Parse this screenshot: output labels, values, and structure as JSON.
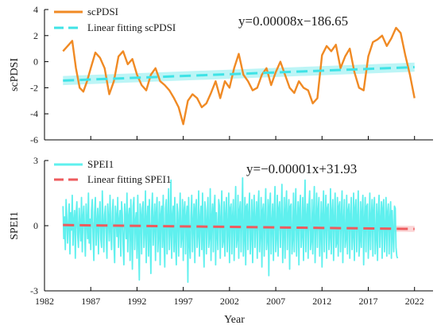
{
  "chart_data": [
    {
      "type": "line",
      "ylabel": "scPDSI",
      "xlim": [
        1982,
        2024
      ],
      "ylim": [
        -6,
        4
      ],
      "yticks": [
        "4",
        "2",
        "0",
        "-2",
        "-4",
        "-6"
      ],
      "legend": [
        {
          "label": "scPDSI",
          "style": "solid",
          "color": "#f08a24"
        },
        {
          "label": "Linear fitting scPDSI",
          "style": "dashed",
          "color": "#3fe3e6"
        }
      ],
      "legend_position": "top-left",
      "annotation": "y=0.00008x−186.65",
      "series": [
        {
          "name": "scPDSI",
          "color": "#f08a24",
          "x": [
            1984.0,
            1984.5,
            1985.0,
            1985.4,
            1985.8,
            1986.2,
            1986.6,
            1987.0,
            1987.5,
            1988.0,
            1988.5,
            1989.0,
            1989.5,
            1990.0,
            1990.5,
            1991.0,
            1991.5,
            1992.0,
            1992.5,
            1993.0,
            1993.5,
            1994.0,
            1994.5,
            1995.0,
            1995.5,
            1996.0,
            1996.5,
            1997.0,
            1997.5,
            1998.0,
            1998.5,
            1999.0,
            1999.5,
            2000.0,
            2000.5,
            2001.0,
            2001.5,
            2002.0,
            2002.5,
            2003.0,
            2003.5,
            2004.0,
            2004.5,
            2005.0,
            2005.5,
            2006.0,
            2006.5,
            2007.0,
            2007.5,
            2008.0,
            2008.5,
            2009.0,
            2009.5,
            2010.0,
            2010.5,
            2011.0,
            2011.5,
            2012.0,
            2012.5,
            2013.0,
            2013.5,
            2014.0,
            2014.5,
            2015.0,
            2015.5,
            2016.0,
            2016.5,
            2017.0,
            2017.5,
            2018.0,
            2018.5,
            2019.0,
            2019.5,
            2020.0,
            2020.5,
            2021.0,
            2021.5,
            2022.0
          ],
          "values": [
            0.8,
            1.2,
            1.6,
            -0.5,
            -2.0,
            -2.3,
            -1.5,
            -0.5,
            0.7,
            0.3,
            -0.5,
            -2.5,
            -1.5,
            0.4,
            0.8,
            -0.2,
            0.2,
            -1.0,
            -1.8,
            -2.2,
            -1.0,
            -0.5,
            -1.5,
            -1.8,
            -2.2,
            -2.8,
            -3.5,
            -4.8,
            -3.0,
            -2.5,
            -2.8,
            -3.5,
            -3.2,
            -2.4,
            -1.5,
            -2.8,
            -1.5,
            -2.0,
            -0.5,
            0.6,
            -1.0,
            -1.5,
            -2.2,
            -2.0,
            -1.0,
            -0.5,
            -1.8,
            -0.8,
            0.0,
            -1.0,
            -2.0,
            -2.4,
            -1.5,
            -2.0,
            -2.2,
            -3.2,
            -2.8,
            0.5,
            1.2,
            0.8,
            1.3,
            -0.5,
            0.4,
            1.0,
            -0.8,
            -2.0,
            -2.2,
            0.4,
            1.5,
            1.7,
            2.0,
            1.2,
            1.8,
            2.6,
            2.2,
            0.5,
            -1.0,
            -2.8
          ]
        },
        {
          "name": "Linear fitting scPDSI",
          "color": "#3fe3e6",
          "x": [
            1984,
            2022
          ],
          "values": [
            -1.45,
            -0.42
          ]
        }
      ]
    },
    {
      "type": "line",
      "xlabel": "Year",
      "ylabel": "SPEI1",
      "xlim": [
        1982,
        2024
      ],
      "ylim": [
        -3,
        3
      ],
      "yticks": [
        "3",
        "0",
        "-3"
      ],
      "xticks": [
        "1982",
        "1987",
        "1992",
        "1997",
        "2002",
        "2007",
        "2012",
        "2017",
        "2022"
      ],
      "legend": [
        {
          "label": "SPEI1",
          "style": "solid",
          "color": "#5ff0ee"
        },
        {
          "label": "Linear fitting SPEI1",
          "style": "dashed",
          "color": "#ee5b5e"
        }
      ],
      "legend_position": "top-left",
      "annotation": "y=−0.00001x+31.93",
      "series": [
        {
          "name": "SPEI1",
          "color": "#5ff0ee",
          "x_start": 1984.0,
          "x_step": 0.0833333,
          "values": [
            0.9,
            -0.6,
            0.4,
            -1.1,
            1.2,
            0.3,
            -0.8,
            0.1,
            1.0,
            -1.3,
            0.6,
            -0.2,
            1.4,
            -0.9,
            0.2,
            0.7,
            -1.5,
            0.5,
            1.1,
            -0.4,
            -1.0,
            0.8,
            0.0,
            -0.7,
            1.3,
            -1.2,
            0.4,
            0.9,
            -0.3,
            -1.4,
            1.0,
            0.2,
            -0.6,
            1.5,
            -0.8,
            0.3,
            -1.1,
            0.7,
            1.2,
            -0.5,
            -1.6,
            0.6,
            1.3,
            -0.9,
            0.1,
            0.8,
            -1.3,
            0.4,
            1.1,
            -0.6,
            -1.0,
            1.6,
            0.2,
            -1.2,
            0.5,
            0.9,
            -0.4,
            -1.5,
            1.0,
            0.3,
            -0.7,
            1.4,
            -0.2,
            -1.1,
            0.6,
            1.2,
            -0.8,
            -1.7,
            0.9,
            0.4,
            -0.5,
            1.3,
            -1.0,
            0.2,
            0.7,
            -1.4,
            1.1,
            0.5,
            -0.9,
            -1.8,
            1.0,
            0.3,
            -0.6,
            1.5,
            -1.2,
            0.4,
            0.8,
            -1.6,
            1.2,
            -0.3,
            -2.0,
            0.9,
            1.3,
            -1.1,
            0.2,
            0.6,
            -1.5,
            1.4,
            -0.7,
            -2.5,
            1.0,
            0.5,
            -1.3,
            0.8,
            1.1,
            -1.0,
            -0.2,
            1.6,
            -1.7,
            0.3,
            0.9,
            -1.4,
            1.2,
            -0.5,
            -2.2,
            0.7,
            1.5,
            -0.9,
            0.1,
            1.0,
            -1.6,
            0.6,
            1.3,
            -1.2,
            -0.4,
            1.1,
            -1.8,
            0.5,
            0.9,
            -1.0,
            1.4,
            -0.6,
            -1.9,
            0.8,
            1.2,
            -1.3,
            0.3,
            1.7,
            -1.1,
            -0.3,
            2.1,
            -1.5,
            0.4,
            0.9,
            -1.2,
            1.3,
            -0.7,
            -1.8,
            1.0,
            0.6,
            -1.4,
            0.2,
            1.5,
            -1.0,
            -0.5,
            1.2,
            -1.6,
            0.7,
            1.1,
            -1.3,
            0.4,
            0.9,
            -2.6,
            1.3,
            -0.8,
            -1.5,
            0.5,
            1.4,
            -1.2,
            0.1,
            1.0,
            -1.7,
            0.8,
            1.2,
            -1.0,
            -0.4,
            1.6,
            -1.4,
            0.3,
            0.9,
            -1.1,
            1.5,
            -0.6,
            -1.9,
            1.1,
            0.7,
            -1.3,
            0.2,
            1.3,
            -1.0,
            -0.5,
            1.7,
            -1.6,
            0.4,
            1.0,
            -1.2,
            0.8,
            1.4,
            -1.8,
            0.6,
            -0.3,
            -1.1,
            1.2,
            0.9,
            -1.5,
            0.3,
            1.6,
            -1.0,
            -0.7,
            1.1,
            -1.4,
            0.5,
            1.3,
            -1.2,
            -0.2,
            1.5,
            -1.7,
            0.8,
            1.0,
            -1.3,
            0.4,
            1.2,
            -1.6,
            0.2,
            1.8,
            -1.0,
            -0.6,
            1.4,
            -1.5,
            0.7,
            1.1,
            -1.2,
            0.3,
            2.2,
            -1.4,
            -0.5,
            1.3,
            -1.8,
            0.9,
            1.0,
            -1.1,
            0.6,
            1.5,
            -1.3,
            -0.4,
            1.2,
            -1.7,
            0.5,
            1.4,
            -1.0,
            0.2,
            1.1,
            -1.5,
            0.8,
            1.6,
            -1.2,
            -0.3,
            1.3,
            -1.9,
            0.7,
            1.0,
            -1.4,
            0.4,
            1.7,
            -1.1,
            -0.6,
            1.2,
            -2.3,
            0.9,
            1.5,
            -1.3,
            0.1,
            1.0,
            -1.6,
            0.6,
            1.8,
            -1.2,
            -0.5,
            1.4,
            -1.4,
            0.8,
            1.1,
            -1.0,
            0.3,
            1.9,
            -1.7,
            -0.2,
            1.3,
            -1.5,
            0.7,
            1.6,
            -1.1,
            0.4,
            1.2,
            -2.0,
            0.9,
            1.0,
            -1.3,
            -0.6,
            1.5,
            -1.2,
            0.5,
            1.7,
            -1.4,
            0.2,
            1.1,
            -1.8,
            0.8,
            1.4,
            -1.0,
            -0.4,
            1.3,
            -1.6,
            0.6,
            2.1,
            -1.2,
            0.3,
            1.0,
            -1.5,
            0.9,
            1.6,
            -1.1,
            -0.7,
            1.2,
            -1.3,
            0.4,
            1.8,
            -1.7,
            0.1,
            1.5,
            -1.0,
            0.7,
            1.3,
            -1.4,
            -0.3,
            1.1,
            -1.9,
            0.5,
            1.6,
            -1.2,
            0.2,
            1.4,
            -1.5,
            0.8,
            1.0,
            -1.1,
            -0.5,
            1.7,
            -1.3,
            0.6,
            1.2,
            -1.6,
            0.3,
            1.5,
            -1.0,
            -0.8,
            1.3,
            -1.4,
            0.9,
            1.1,
            -1.2,
            0.4,
            1.6,
            -1.7,
            0.2,
            1.2,
            -1.0,
            -0.6,
            1.4,
            -1.3,
            0.7,
            1.0,
            -1.5,
            0.5,
            1.3,
            -1.1,
            -0.4,
            1.5,
            -1.6,
            0.8,
            1.2,
            -1.2,
            0.3,
            1.6,
            -1.4,
            -0.7,
            1.1,
            -1.0,
            0.6,
            1.4,
            -1.8,
            0.2,
            1.3,
            -1.2,
            0.9,
            1.0,
            -1.5,
            -0.3,
            1.5,
            -1.1,
            0.4,
            1.2,
            -1.4,
            0.7,
            1.3,
            -1.3,
            -0.5,
            1.0,
            -1.6,
            0.5,
            1.4,
            -1.0,
            0.2,
            1.1,
            -1.5,
            0.8,
            1.2,
            -1.2,
            -0.2,
            1.3,
            -1.4,
            0.6,
            1.0,
            -1.3,
            0.3,
            1.1,
            -1.5,
            0.7,
            -0.4,
            -1.2,
            0.9,
            0.8,
            -1.0,
            -1.4,
            -1.5
          ]
        },
        {
          "name": "Linear fitting SPEI1",
          "color": "#ee5b5e",
          "x": [
            1984,
            2022
          ],
          "values": [
            0.03,
            -0.15
          ]
        }
      ]
    }
  ]
}
